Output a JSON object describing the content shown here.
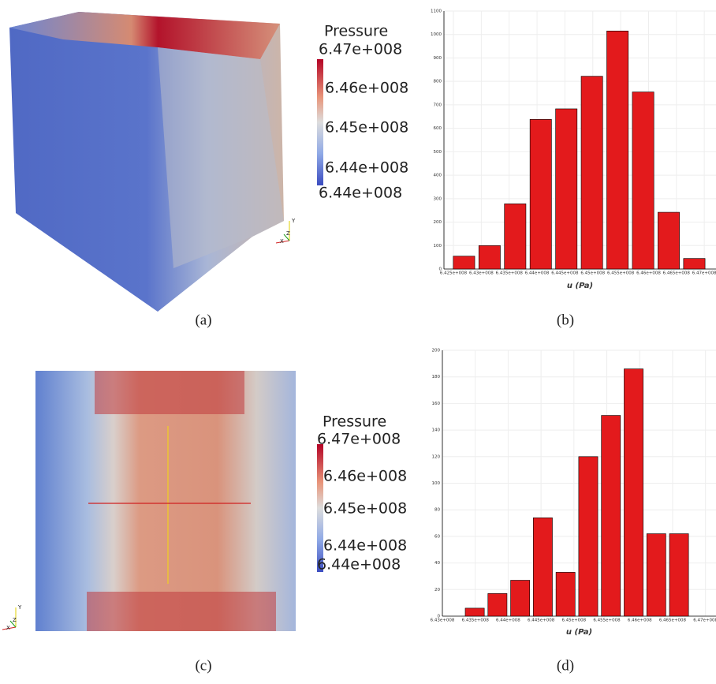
{
  "chart_data": [
    {
      "type": "histogram",
      "xlabel": "u (Pa)",
      "bins": [
        642460000,
        642919000,
        643378000,
        643837000,
        644296000,
        644755000,
        645214000,
        645673000,
        646132000,
        646591000,
        647050000
      ],
      "values": [
        55,
        100,
        278,
        638,
        683,
        822,
        1015,
        755,
        242,
        45
      ],
      "color": "#e31a1c",
      "xlim": [
        642330000,
        647210000
      ],
      "ylim": [
        0,
        1100
      ],
      "xticks": [
        {
          "value": 642500000,
          "label": "6.425e+008"
        },
        {
          "value": 643000000,
          "label": "6.43e+008"
        },
        {
          "value": 643500000,
          "label": "6.435e+008"
        },
        {
          "value": 644000000,
          "label": "6.44e+008"
        },
        {
          "value": 644500000,
          "label": "6.445e+008"
        },
        {
          "value": 645000000,
          "label": "6.45e+008"
        },
        {
          "value": 645500000,
          "label": "6.455e+008"
        },
        {
          "value": 646000000,
          "label": "6.46e+008"
        },
        {
          "value": 646500000,
          "label": "6.465e+008"
        },
        {
          "value": 647000000,
          "label": "6.47e+008"
        }
      ],
      "yticks": [
        0,
        100,
        200,
        300,
        400,
        500,
        600,
        700,
        800,
        900,
        1000,
        1100
      ],
      "grid": true
    },
    {
      "type": "histogram",
      "xlabel": "u (Pa)",
      "bins": [
        643320000,
        643665000,
        644010000,
        644355000,
        644700000,
        645045000,
        645390000,
        645735000,
        646080000,
        646425000,
        646770000
      ],
      "values": [
        6,
        17,
        27,
        74,
        33,
        120,
        151,
        186,
        62,
        62
      ],
      "color": "#e31a1c",
      "xlim": [
        643000000,
        647160000
      ],
      "ylim": [
        0,
        200
      ],
      "xticks": [
        {
          "value": 643000000,
          "label": "6.43e+008"
        },
        {
          "value": 643500000,
          "label": "6.435e+008"
        },
        {
          "value": 644000000,
          "label": "6.44e+008"
        },
        {
          "value": 644500000,
          "label": "6.445e+008"
        },
        {
          "value": 645000000,
          "label": "6.45e+008"
        },
        {
          "value": 645500000,
          "label": "6.455e+008"
        },
        {
          "value": 646000000,
          "label": "6.46e+008"
        },
        {
          "value": 646500000,
          "label": "6.465e+008"
        },
        {
          "value": 647000000,
          "label": "6.47e+008"
        }
      ],
      "yticks": [
        0,
        20,
        40,
        60,
        80,
        100,
        120,
        140,
        160,
        180,
        200
      ],
      "grid": true
    }
  ],
  "colorbars": [
    {
      "title": "Pressure",
      "labels": [
        "6.47e+008",
        "6.46e+008",
        "6.45e+008",
        "6.44e+008",
        "6.44e+008"
      ]
    },
    {
      "title": "Pressure",
      "labels": [
        "6.47e+008",
        "6.46e+008",
        "6.45e+008",
        "6.44e+008",
        "6.44e+008"
      ]
    }
  ],
  "axes_gizmo": [
    {
      "x": "X",
      "y": "Y",
      "z": "Z"
    },
    {
      "x": "X",
      "y": "Y",
      "z": "Z"
    }
  ],
  "captions": [
    "(a)",
    "(b)",
    "(c)",
    "(d)"
  ]
}
